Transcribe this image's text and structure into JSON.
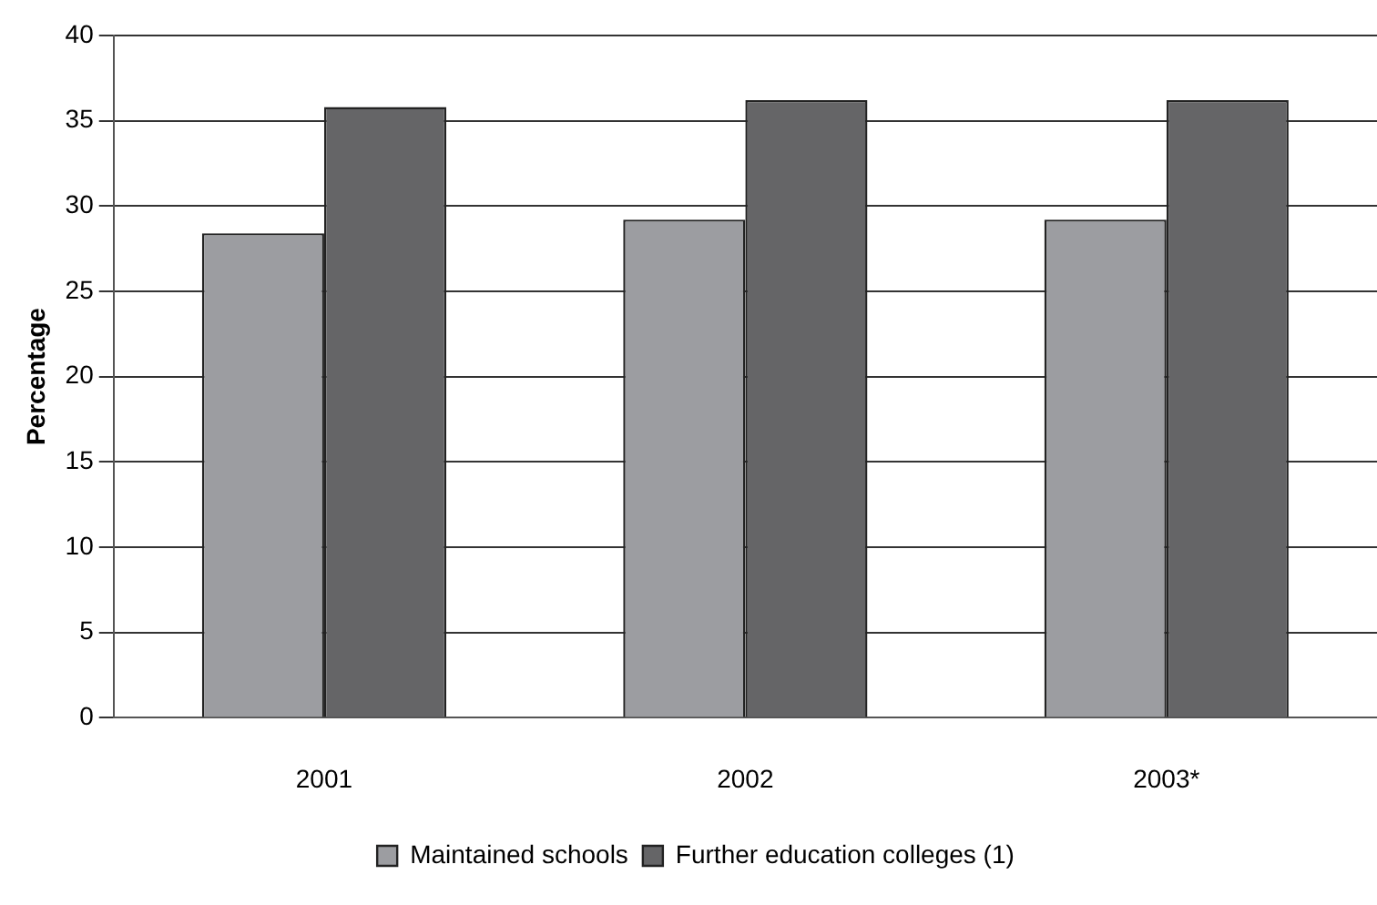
{
  "chart_data": {
    "type": "bar",
    "ylabel": "Percentage",
    "categories": [
      "2001",
      "2002",
      "2003*"
    ],
    "series": [
      {
        "name": "Maintained schools",
        "color": "#9c9da1",
        "values": [
          28.4,
          29.2,
          29.2
        ]
      },
      {
        "name": "Further education colleges (1)",
        "color": "#656567",
        "values": [
          35.8,
          36.2,
          36.2
        ]
      }
    ],
    "ylim": [
      0,
      40
    ],
    "yticks": [
      0,
      5,
      10,
      15,
      20,
      25,
      30,
      35,
      40
    ],
    "grid": "y",
    "legend": "bottom"
  }
}
